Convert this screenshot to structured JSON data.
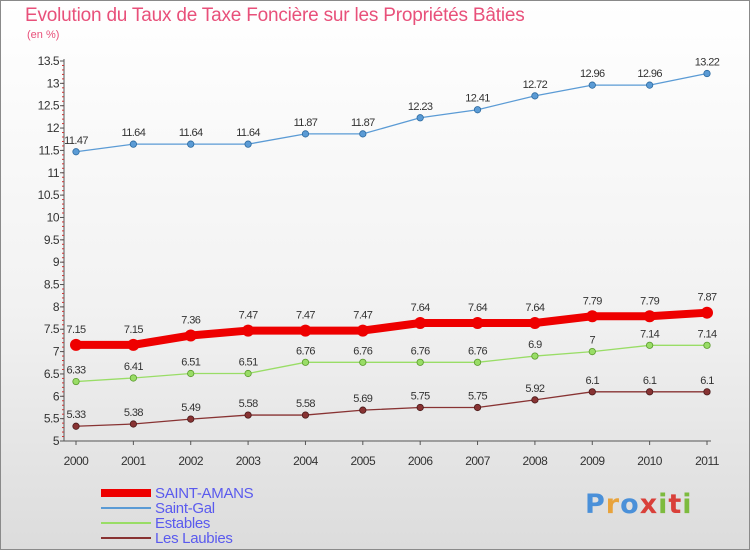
{
  "header": {
    "title": "Evolution du Taux de Taxe Foncière sur les Propriétés Bâties",
    "unit": "(en %)"
  },
  "logo": {
    "text": "Proxiti",
    "letter_colors": [
      "#4a90d9",
      "#e8a33c",
      "#4a90d9",
      "#d9403a",
      "#7dbb3e",
      "#d9403a",
      "#7dbb3e"
    ]
  },
  "colors": {
    "axis": "#555555",
    "tick_label": "#333333",
    "data_label": "#333333",
    "grid": "#ffffff"
  },
  "chart_data": {
    "type": "line",
    "title": "Evolution du Taux de Taxe Foncière sur les Propriétés Bâties",
    "ylabel": "(en %)",
    "xlabel": "",
    "x": [
      "2000",
      "2001",
      "2002",
      "2003",
      "2004",
      "2005",
      "2006",
      "2007",
      "2008",
      "2009",
      "2010",
      "2011"
    ],
    "ylim": [
      5,
      13.5
    ],
    "yticks": [
      "5",
      "5.5",
      "6",
      "6.5",
      "7",
      "7.5",
      "8",
      "8.5",
      "9",
      "9.5",
      "10",
      "10.5",
      "11",
      "11.5",
      "12",
      "12.5",
      "13",
      "13.5"
    ],
    "grid": false,
    "legend_position": "bottom-left",
    "series": [
      {
        "name": "SAINT-AMANS",
        "color": "#ee0000",
        "values": [
          7.15,
          7.15,
          7.36,
          7.47,
          7.47,
          7.47,
          7.64,
          7.64,
          7.64,
          7.79,
          7.79,
          7.87
        ],
        "labels": [
          "7.15",
          "7.15",
          "7.36",
          "7.47",
          "7.47",
          "7.47",
          "7.64",
          "7.64",
          "7.64",
          "7.79",
          "7.79",
          "7.87"
        ]
      },
      {
        "name": "Saint-Gal",
        "color": "#5b9bd5",
        "values": [
          11.47,
          11.64,
          11.64,
          11.64,
          11.87,
          11.87,
          12.23,
          12.41,
          12.72,
          12.96,
          12.96,
          13.22
        ],
        "labels": [
          "11.47",
          "11.64",
          "11.64",
          "11.64",
          "11.87",
          "11.87",
          "12.23",
          "12.41",
          "12.72",
          "12.96",
          "12.96",
          "13.22"
        ]
      },
      {
        "name": "Estables",
        "color": "#99dd66",
        "values": [
          6.33,
          6.41,
          6.51,
          6.51,
          6.76,
          6.76,
          6.76,
          6.76,
          6.9,
          7,
          7.14,
          7.14
        ],
        "labels": [
          "6.33",
          "6.41",
          "6.51",
          "6.51",
          "6.76",
          "6.76",
          "6.76",
          "6.76",
          "6.9",
          "7",
          "7.14",
          "7.14"
        ]
      },
      {
        "name": "Les Laubies",
        "color": "#883333",
        "values": [
          5.33,
          5.38,
          5.49,
          5.58,
          5.58,
          5.69,
          5.75,
          5.75,
          5.92,
          6.1,
          6.1,
          6.1
        ],
        "labels": [
          "5.33",
          "5.38",
          "5.49",
          "5.58",
          "5.58",
          "5.69",
          "5.75",
          "5.75",
          "5.92",
          "6.1",
          "6.1",
          "6.1"
        ]
      }
    ]
  }
}
